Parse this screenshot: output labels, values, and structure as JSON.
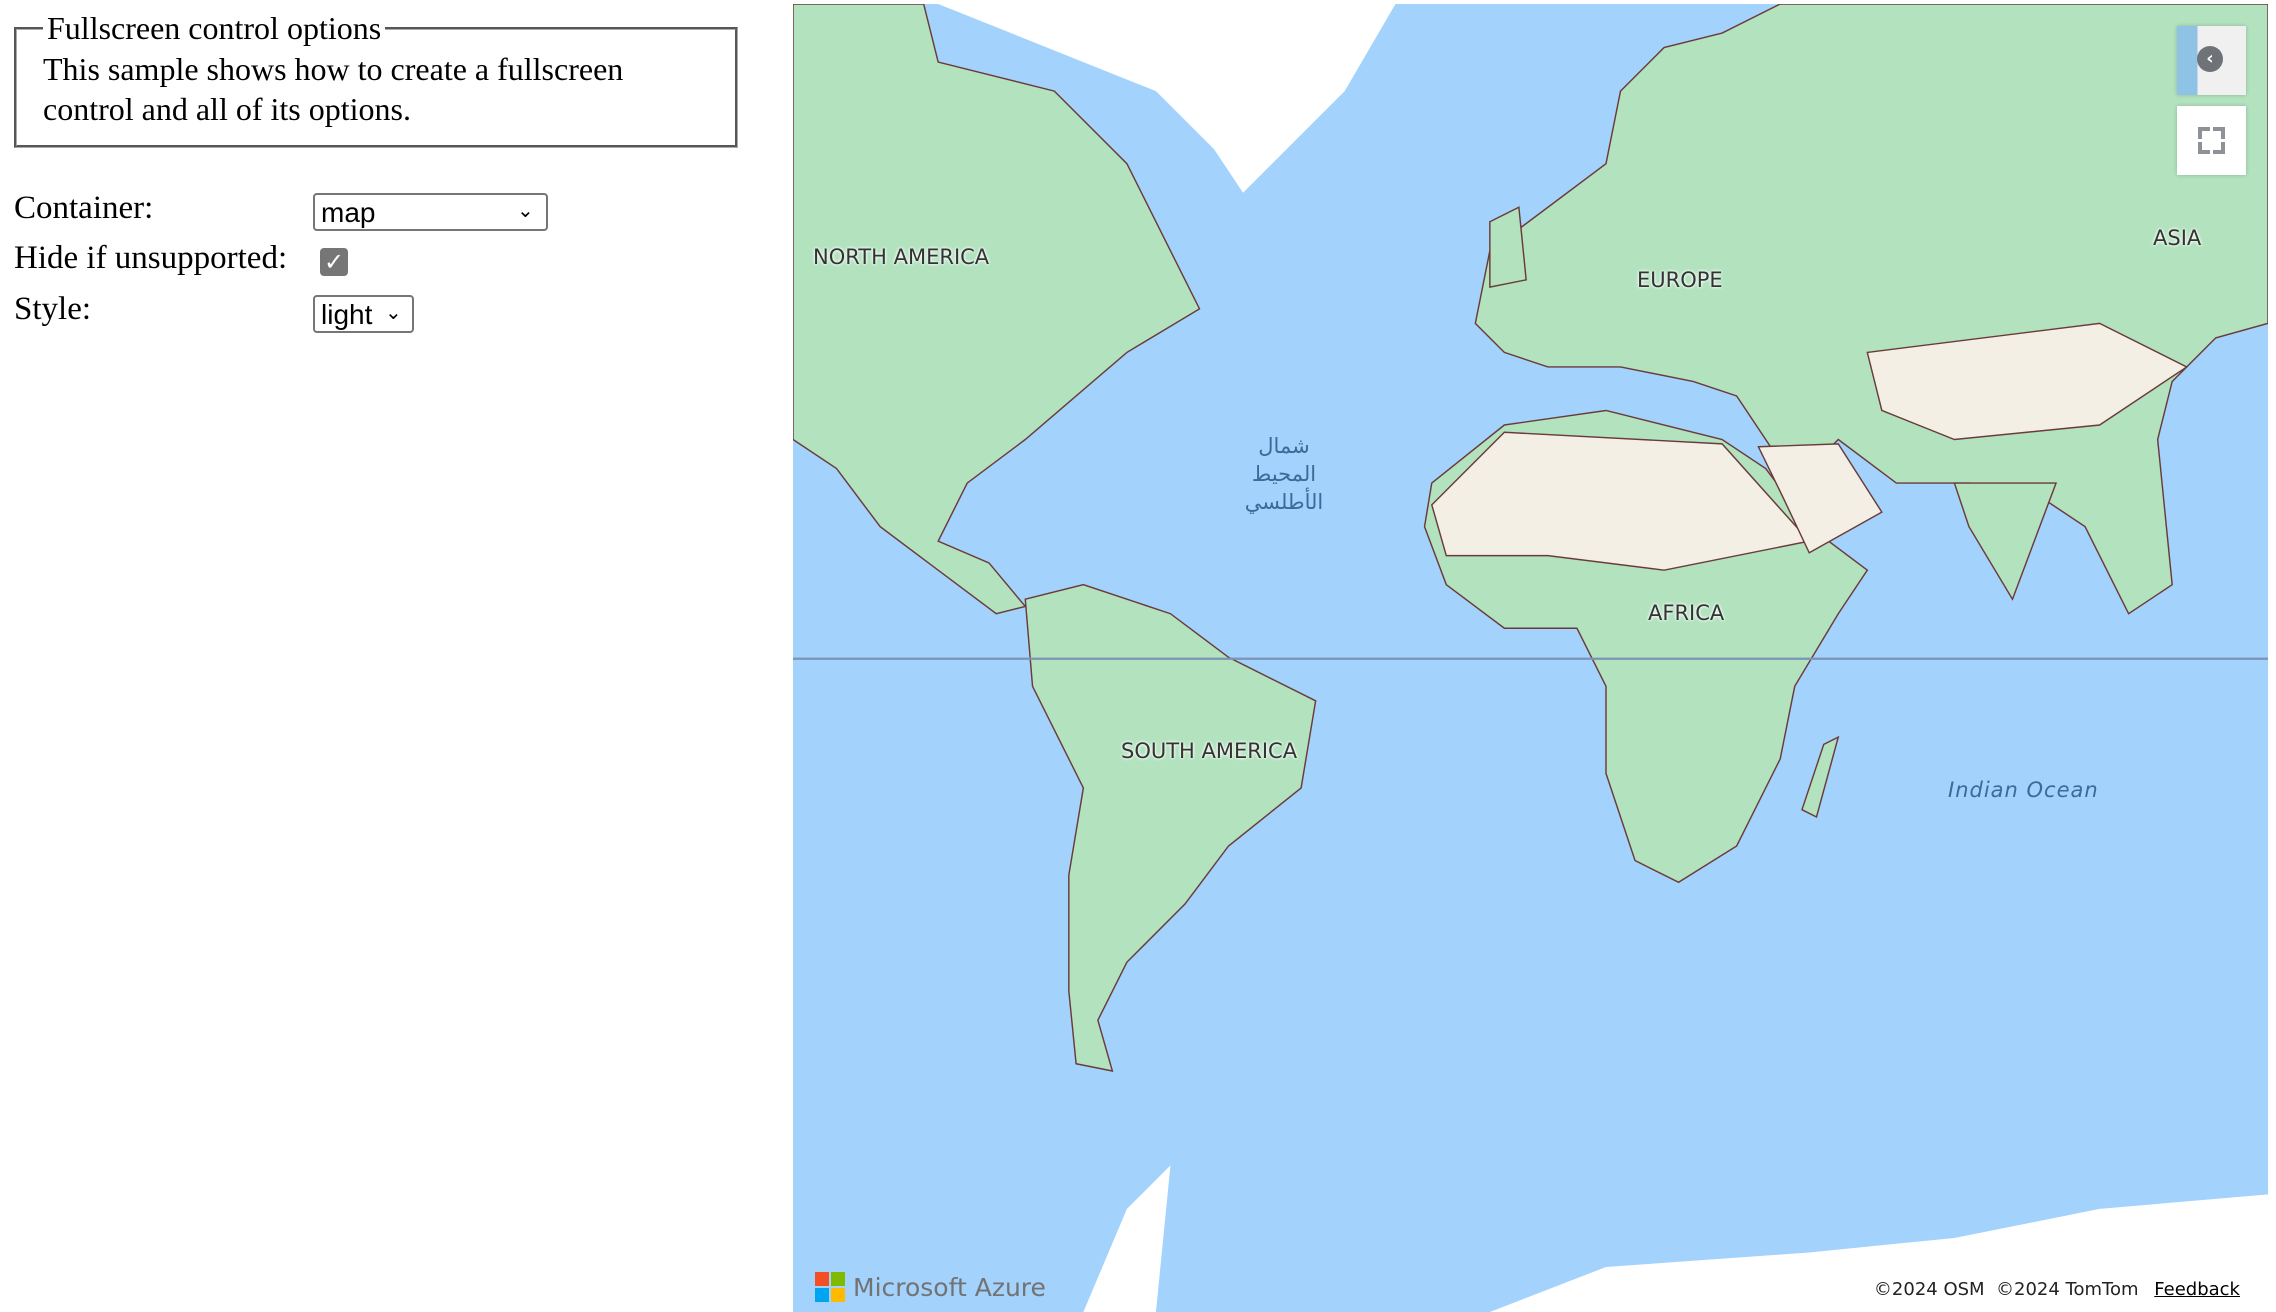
{
  "panel": {
    "legend": "Fullscreen control options",
    "description": "This sample shows how to create a fullscreen control and all of its options.",
    "container_label": "Container:",
    "container_value": "map",
    "hide_label": "Hide if unsupported:",
    "hide_checked": true,
    "style_label": "Style:",
    "style_value": "light"
  },
  "map": {
    "labels": {
      "north_america": "NORTH AMERICA",
      "europe": "EUROPE",
      "asia": "ASIA",
      "africa": "AFRICA",
      "south_america": "SOUTH AMERICA",
      "indian_ocean": "Indian Ocean",
      "atlantic_line1": "شمال المحيط",
      "atlantic_line2": "الأطلسي"
    },
    "logo": "Microsoft Azure",
    "attribution": {
      "osm": "©2024 OSM",
      "tomtom": "©2024 TomTom",
      "feedback": "Feedback"
    },
    "colors": {
      "water": "#a3d2fc",
      "land": "#b2e2be",
      "desert": "#f3efe4",
      "ice": "#ffffff",
      "border": "#6b3b3b"
    }
  }
}
